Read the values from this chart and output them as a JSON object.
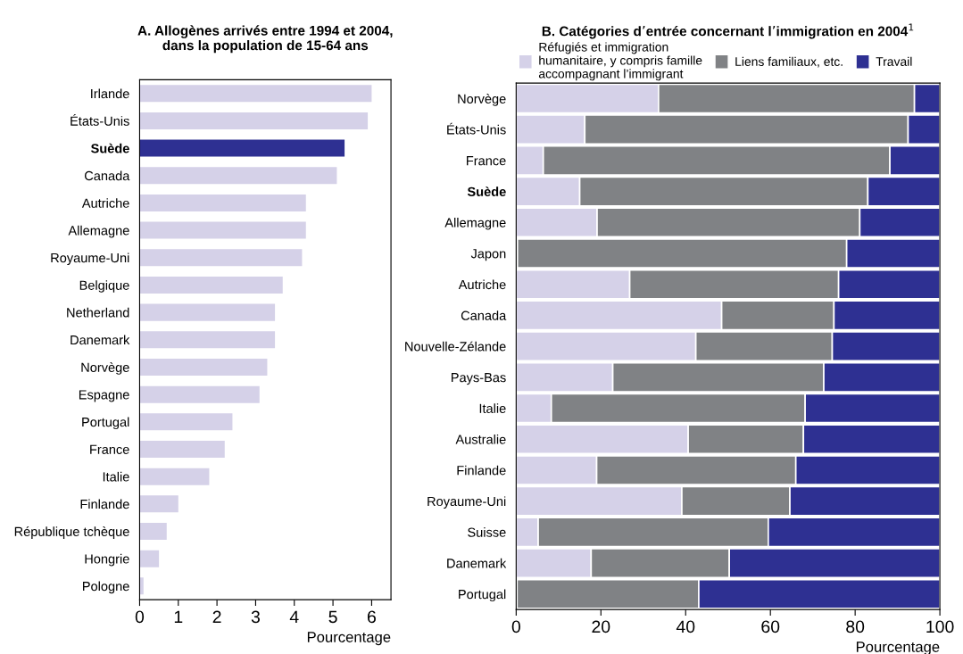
{
  "chart_data": [
    {
      "type": "bar",
      "orientation": "horizontal",
      "title": "A. Allogènes arrivés entre 1994 et 2004,\ndans la population de 15-64 ans",
      "xlabel": "Pourcentage",
      "categories": [
        "Irlande",
        "États-Unis",
        "Suède",
        "Canada",
        "Autriche",
        "Allemagne",
        "Royaume-Uni",
        "Belgique",
        "Netherland",
        "Danemark",
        "Norvège",
        "Espagne",
        "Portugal",
        "France",
        "Italie",
        "Finlande",
        "République tchèque",
        "Hongrie",
        "Pologne"
      ],
      "values": [
        6.0,
        5.9,
        5.3,
        5.1,
        4.3,
        4.3,
        4.2,
        3.7,
        3.5,
        3.5,
        3.3,
        3.1,
        2.4,
        2.2,
        1.8,
        1.0,
        0.7,
        0.5,
        0.1
      ],
      "colors": [
        "#d5d1e8",
        "#d5d1e8",
        "#2e3092",
        "#d5d1e8",
        "#d5d1e8",
        "#d5d1e8",
        "#d5d1e8",
        "#d5d1e8",
        "#d5d1e8",
        "#d5d1e8",
        "#d5d1e8",
        "#d5d1e8",
        "#d5d1e8",
        "#d5d1e8",
        "#d5d1e8",
        "#d5d1e8",
        "#d5d1e8",
        "#d5d1e8",
        "#d5d1e8"
      ],
      "xlim": [
        0,
        6.5
      ],
      "xticks": [
        0,
        1,
        2,
        3,
        4,
        5,
        6
      ],
      "grid": false,
      "legend": false
    },
    {
      "type": "bar",
      "orientation": "horizontal",
      "stacked": true,
      "title": "B. Catégories d’entrée concernant l’immigration en 2004$^{1}$",
      "xlabel": "Pourcentage",
      "categories": [
        "Norvège",
        "États-Unis",
        "France",
        "Suède",
        "Allemagne",
        "Japon",
        "Autriche",
        "Canada",
        "Nouvelle-Zélande",
        "Pays-Bas",
        "Italie",
        "Australie",
        "Finlande",
        "Royaume-Uni",
        "Suisse",
        "Danemark",
        "Portugal"
      ],
      "series": [
        {
          "name": "Réfugiés et immigration\nhumanitaire, y compris famille\naccompagnant l’immigrant",
          "color": "#d5d1e8",
          "values": [
            33.6,
            16.2,
            6.4,
            15.0,
            19.1,
            0.3,
            26.8,
            48.5,
            42.4,
            22.8,
            8.3,
            40.6,
            19.0,
            39.1,
            5.2,
            17.7,
            0.2
          ]
        },
        {
          "name": "Liens familiaux, etc.",
          "color": "#808285",
          "values": [
            60.4,
            76.3,
            81.8,
            68.0,
            62.0,
            77.7,
            49.3,
            26.5,
            32.2,
            49.8,
            59.9,
            27.2,
            47.0,
            25.5,
            54.3,
            32.6,
            42.9
          ]
        },
        {
          "name": "Travail",
          "color": "#2e3092",
          "values": [
            6.0,
            7.5,
            11.8,
            17.0,
            18.9,
            22.0,
            23.9,
            25.0,
            25.4,
            27.4,
            31.8,
            32.2,
            34.0,
            35.4,
            40.5,
            49.7,
            56.9
          ]
        }
      ],
      "xlim": [
        0,
        100
      ],
      "xticks": [
        0,
        20,
        40,
        60,
        80,
        100
      ],
      "grid": false,
      "legend": "top"
    }
  ]
}
